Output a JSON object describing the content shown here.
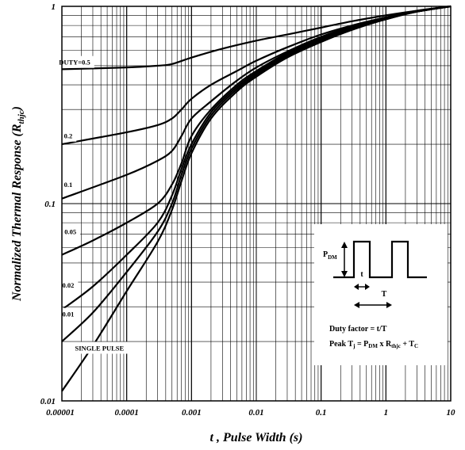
{
  "chart_data": {
    "type": "line",
    "title": "",
    "x_scale": "log",
    "y_scale": "log",
    "xlim": [
      1e-05,
      10
    ],
    "ylim": [
      0.01,
      1
    ],
    "grid": true,
    "xlabel": "t , Pulse Width (s)",
    "ylabel_main": "Normalized Thermal Response (R",
    "ylabel_sub": "thjc",
    "ylabel_close": ")",
    "x_ticks": [
      {
        "value": 1e-05,
        "label": "0.00001"
      },
      {
        "value": 0.0001,
        "label": "0.0001"
      },
      {
        "value": 0.001,
        "label": "0.001"
      },
      {
        "value": 0.01,
        "label": "0.01"
      },
      {
        "value": 0.1,
        "label": "0.1"
      },
      {
        "value": 1,
        "label": "1"
      },
      {
        "value": 10,
        "label": "10"
      }
    ],
    "y_ticks": [
      {
        "value": 0.01,
        "label": "0.01"
      },
      {
        "value": 0.1,
        "label": "0.1"
      },
      {
        "value": 1,
        "label": "1"
      }
    ],
    "series": [
      {
        "name": "DUTY=0.5",
        "label_at": [
          1.57e-05,
          0.52
        ],
        "x": [
          1e-05,
          0.0001,
          0.0003,
          0.0005,
          0.001,
          0.003,
          0.01,
          0.03,
          0.1,
          0.3,
          1,
          3,
          10
        ],
        "y": [
          0.48,
          0.49,
          0.5,
          0.51,
          0.55,
          0.61,
          0.67,
          0.72,
          0.78,
          0.84,
          0.9,
          0.95,
          1.0
        ]
      },
      {
        "name": "0.2",
        "label_at": [
          1.25e-05,
          0.22
        ],
        "x": [
          1e-05,
          0.0001,
          0.0003,
          0.0005,
          0.0007,
          0.001,
          0.002,
          0.005,
          0.01,
          0.03,
          0.1,
          0.3,
          1,
          3,
          10
        ],
        "y": [
          0.2,
          0.23,
          0.25,
          0.27,
          0.3,
          0.34,
          0.4,
          0.47,
          0.53,
          0.62,
          0.72,
          0.8,
          0.88,
          0.95,
          1.0
        ]
      },
      {
        "name": "0.1",
        "label_at": [
          1.25e-05,
          0.125
        ],
        "x": [
          1e-05,
          0.0001,
          0.0003,
          0.0005,
          0.0007,
          0.001,
          0.002,
          0.005,
          0.01,
          0.03,
          0.1,
          0.3,
          1,
          3,
          10
        ],
        "y": [
          0.106,
          0.14,
          0.165,
          0.185,
          0.22,
          0.27,
          0.33,
          0.42,
          0.49,
          0.59,
          0.7,
          0.79,
          0.87,
          0.94,
          1.0
        ]
      },
      {
        "name": "0.05",
        "label_at": [
          1.35e-05,
          0.072
        ],
        "x": [
          1e-05,
          3e-05,
          0.0001,
          0.0003,
          0.0005,
          0.0007,
          0.001,
          0.002,
          0.005,
          0.01,
          0.03,
          0.1,
          0.3,
          1,
          3,
          10
        ],
        "y": [
          0.055,
          0.065,
          0.08,
          0.1,
          0.125,
          0.16,
          0.22,
          0.3,
          0.4,
          0.47,
          0.58,
          0.69,
          0.78,
          0.87,
          0.94,
          1.0
        ]
      },
      {
        "name": "0.02",
        "label_at": [
          1.25e-05,
          0.0385
        ],
        "x": [
          1e-05,
          3e-05,
          0.0001,
          0.0003,
          0.0005,
          0.0007,
          0.001,
          0.002,
          0.005,
          0.01,
          0.03,
          0.1,
          0.3,
          1,
          3,
          10
        ],
        "y": [
          0.029,
          0.038,
          0.055,
          0.08,
          0.11,
          0.15,
          0.2,
          0.29,
          0.39,
          0.46,
          0.57,
          0.68,
          0.78,
          0.87,
          0.94,
          1.0
        ]
      },
      {
        "name": "0.01",
        "label_at": [
          1.25e-05,
          0.0275
        ],
        "x": [
          1e-05,
          3e-05,
          0.0001,
          0.0003,
          0.0005,
          0.0007,
          0.001,
          0.002,
          0.005,
          0.01,
          0.03,
          0.1,
          0.3,
          1,
          3,
          10
        ],
        "y": [
          0.02,
          0.028,
          0.045,
          0.072,
          0.1,
          0.14,
          0.19,
          0.28,
          0.38,
          0.45,
          0.56,
          0.67,
          0.77,
          0.86,
          0.94,
          1.0
        ]
      },
      {
        "name": "SINGLE PULSE",
        "label_at": [
          3.8e-05,
          0.0185
        ],
        "x": [
          1e-05,
          3e-05,
          0.0001,
          0.0003,
          0.0005,
          0.0007,
          0.001,
          0.002,
          0.005,
          0.01,
          0.03,
          0.1,
          0.3,
          1,
          3,
          10
        ],
        "y": [
          0.0112,
          0.019,
          0.036,
          0.064,
          0.093,
          0.13,
          0.18,
          0.27,
          0.37,
          0.44,
          0.55,
          0.66,
          0.76,
          0.86,
          0.94,
          1.0
        ]
      }
    ],
    "inset": {
      "pdm_main": "P",
      "pdm_sub": "DM",
      "t_label": "t",
      "T_label": "T",
      "duty_line": "Duty factor = t/T",
      "peak_parts": [
        "Peak T",
        "j",
        " = P",
        "DM",
        " x R",
        "thjc",
        " + T",
        "C"
      ]
    }
  }
}
